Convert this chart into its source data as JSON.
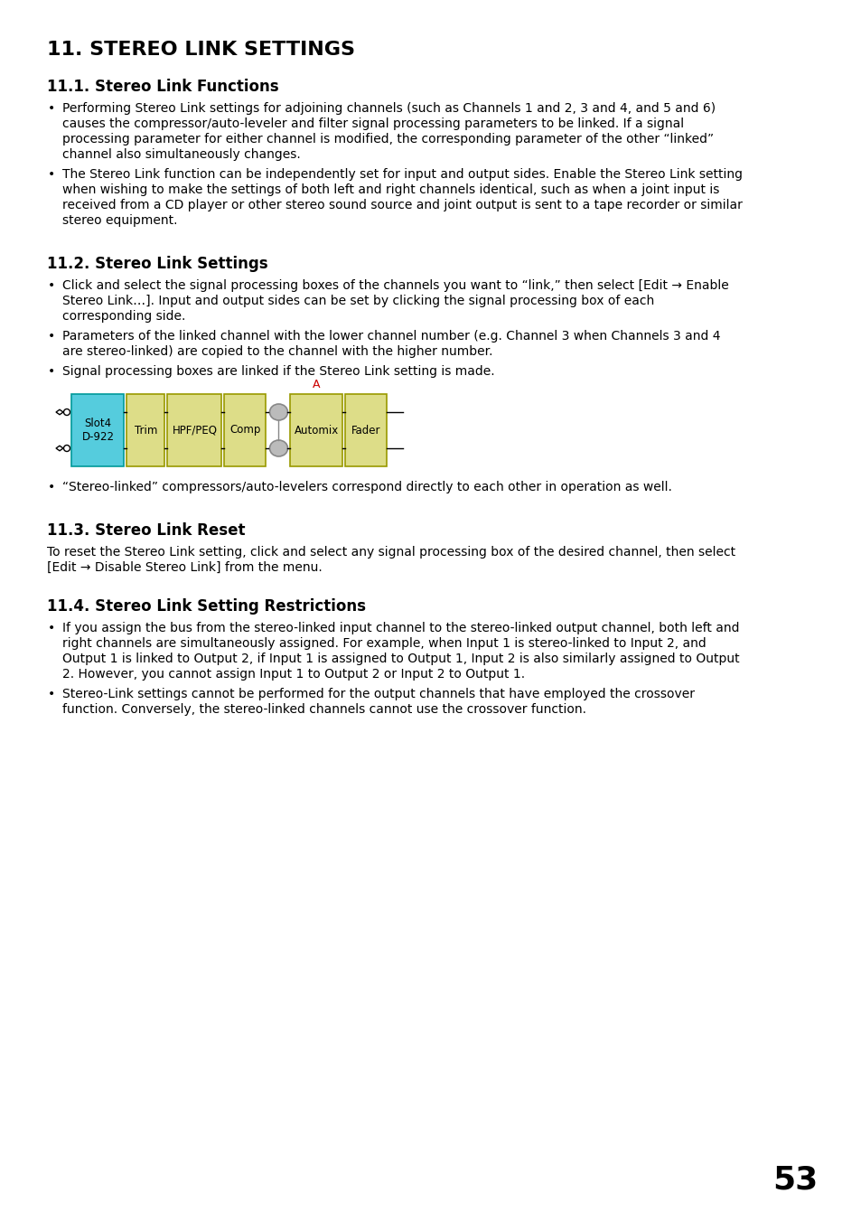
{
  "title": "11. STEREO LINK SETTINGS",
  "background_color": "#ffffff",
  "text_color": "#000000",
  "page_number": "53",
  "diagram": {
    "slot_label": "Slot4\nD-922",
    "slot_color": "#55ccdd",
    "box_labels": [
      "Trim",
      "HPF/PEQ",
      "Comp",
      "Automix",
      "Fader"
    ],
    "box_color": "#dddd88",
    "box_border": "#999900",
    "slot_border": "#009999",
    "arrow_color": "#cc0000",
    "arrow_label": "A",
    "ellipse_color": "#bbbbbb",
    "ellipse_border": "#888888"
  }
}
